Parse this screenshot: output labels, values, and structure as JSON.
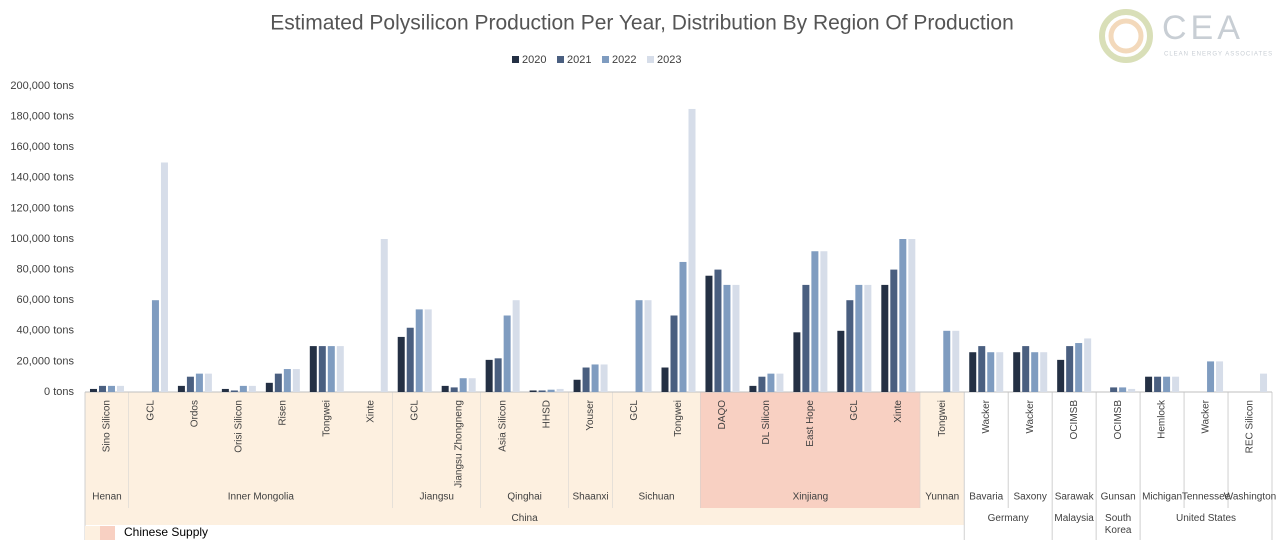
{
  "chart_data": {
    "type": "bar",
    "title": "Estimated Polysilicon Production Per Year, Distribution By Region Of Production",
    "logo": {
      "mark": "CEA",
      "tagline": "CLEAN ENERGY ASSOCIATES"
    },
    "categories": [
      "Sino Silicon",
      "GCL",
      "Ordos",
      "Orisi Silicon",
      "Risen",
      "Tongwei",
      "Xinte",
      "GCL",
      "Jiangsu Zhongneng",
      "Asia Silicon",
      "HHSD",
      "Youser",
      "GCL",
      "Tongwei",
      "DAQO",
      "DL Silicon",
      "East Hope",
      "GCL",
      "Xinte",
      "Tongwei",
      "Wacker",
      "Wacker",
      "OCIMSB",
      "OCIMSB",
      "Hemlock",
      "Wacker",
      "REC Silicon"
    ],
    "regions": [
      {
        "name": "Henan",
        "span": 1,
        "color": "#fdf0e0"
      },
      {
        "name": "Inner Mongolia",
        "span": 6,
        "color": "#fdf0e0"
      },
      {
        "name": "Jiangsu",
        "span": 2,
        "color": "#fdf0e0"
      },
      {
        "name": "Qinghai",
        "span": 2,
        "color": "#fdf0e0"
      },
      {
        "name": "Shaanxi",
        "span": 1,
        "color": "#fdf0e0"
      },
      {
        "name": "Sichuan",
        "span": 2,
        "color": "#fdf0e0"
      },
      {
        "name": "Xinjiang",
        "span": 5,
        "color": "#f8d0c2"
      },
      {
        "name": "Yunnan",
        "span": 1,
        "color": "#fdf0e0"
      },
      {
        "name": "Bavaria",
        "span": 1
      },
      {
        "name": "Saxony",
        "span": 1
      },
      {
        "name": "Sarawak",
        "span": 1
      },
      {
        "name": "Gunsan",
        "span": 1
      },
      {
        "name": "Michigan",
        "span": 1
      },
      {
        "name": "Tennessee",
        "span": 1
      },
      {
        "name": "Washington",
        "span": 1
      }
    ],
    "countries": [
      {
        "name": "China",
        "span": 20,
        "color": "#fdf0e0"
      },
      {
        "name": "Germany",
        "span": 2
      },
      {
        "name": "Malaysia",
        "span": 1
      },
      {
        "name": "South Korea",
        "span": 1
      },
      {
        "name": "United States",
        "span": 3
      }
    ],
    "supply_legend": {
      "label": "Chinese Supply",
      "colors": [
        "#fdf0e0",
        "#f8d0c2"
      ]
    },
    "series": [
      {
        "name": "2020",
        "color": "#243044",
        "values": [
          2000,
          0,
          4000,
          2000,
          6000,
          30000,
          0,
          36000,
          4000,
          21000,
          1000,
          8000,
          0,
          16000,
          76000,
          4000,
          39000,
          40000,
          70000,
          0,
          26000,
          26000,
          21000,
          0,
          10000,
          0,
          0
        ]
      },
      {
        "name": "2021",
        "color": "#4a5f80",
        "values": [
          4000,
          0,
          10000,
          1000,
          12000,
          30000,
          0,
          42000,
          3000,
          22000,
          1000,
          16000,
          0,
          50000,
          80000,
          10000,
          70000,
          60000,
          80000,
          0,
          30000,
          30000,
          30000,
          3000,
          10000,
          0,
          0
        ]
      },
      {
        "name": "2022",
        "color": "#7f9cc0",
        "values": [
          4000,
          60000,
          12000,
          4000,
          15000,
          30000,
          0,
          54000,
          9000,
          50000,
          1500,
          18000,
          60000,
          85000,
          70000,
          12000,
          92000,
          70000,
          100000,
          40000,
          26000,
          26000,
          32000,
          3000,
          10000,
          20000,
          0
        ]
      },
      {
        "name": "2023",
        "color": "#d6dde9",
        "values": [
          4000,
          150000,
          12000,
          4000,
          15000,
          30000,
          100000,
          54000,
          9000,
          60000,
          2000,
          18000,
          60000,
          185000,
          70000,
          12000,
          92000,
          70000,
          100000,
          40000,
          26000,
          26000,
          35000,
          2000,
          10000,
          20000,
          12000
        ]
      }
    ],
    "ylim": [
      0,
      200000
    ],
    "yticks": [
      {
        "value": 0,
        "label": "0 tons"
      },
      {
        "value": 20000,
        "label": "20,000 tons"
      },
      {
        "value": 40000,
        "label": "40,000 tons"
      },
      {
        "value": 60000,
        "label": "60,000 tons"
      },
      {
        "value": 80000,
        "label": "80,000 tons"
      },
      {
        "value": 100000,
        "label": "100,000 tons"
      },
      {
        "value": 120000,
        "label": "120,000 tons"
      },
      {
        "value": 140000,
        "label": "140,000 tons"
      },
      {
        "value": 160000,
        "label": "160,000 tons"
      },
      {
        "value": 180000,
        "label": "180,000 tons"
      },
      {
        "value": 200000,
        "label": "200,000 tons"
      }
    ],
    "grid": false,
    "legend": "top"
  }
}
